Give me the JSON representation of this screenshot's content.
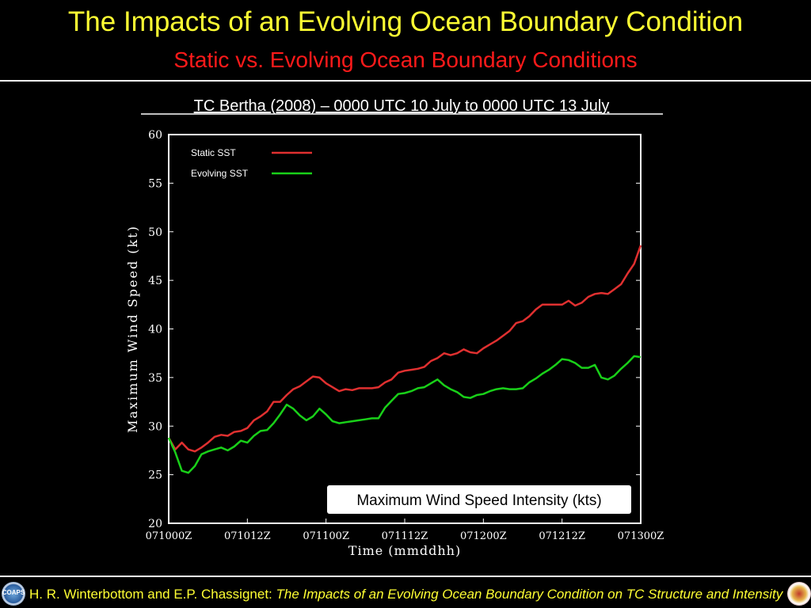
{
  "header": {
    "title": "The Impacts of an Evolving Ocean Boundary Condition",
    "subtitle": "Static vs. Evolving Ocean Boundary Conditions"
  },
  "footer": {
    "authors": "H. R. Winterbottom and E.P. Chassignet: ",
    "paper_title": "The Impacts of an Evolving Ocean Boundary Condition on TC Structure and Intensity",
    "left_logo_text": "COAPS"
  },
  "colors": {
    "static": "#e03030",
    "evolving": "#19d019",
    "title": "#ffff33",
    "subtitle": "#ff1a1a"
  },
  "chart_data": {
    "type": "line",
    "title": "TC Bertha (2008) – 0000 UTC 10 July to 0000 UTC 13 July",
    "xlabel": "Time (mmddhh)",
    "ylabel": "Maximum Wind Speed (kt)",
    "annotation": "Maximum Wind Speed Intensity (kts)",
    "xlim": [
      0,
      72
    ],
    "ylim": [
      20,
      60
    ],
    "yticks": [
      20,
      25,
      30,
      35,
      40,
      45,
      50,
      55,
      60
    ],
    "xticks": [
      {
        "x": 0,
        "label": "071000Z"
      },
      {
        "x": 12,
        "label": "071012Z"
      },
      {
        "x": 24,
        "label": "071100Z"
      },
      {
        "x": 36,
        "label": "071112Z"
      },
      {
        "x": 48,
        "label": "071200Z"
      },
      {
        "x": 60,
        "label": "071212Z"
      },
      {
        "x": 72,
        "label": "071300Z"
      }
    ],
    "legend_position": "top-left",
    "x": [
      0,
      1,
      2,
      3,
      4,
      5,
      6,
      7,
      8,
      9,
      10,
      11,
      12,
      13,
      14,
      15,
      16,
      17,
      18,
      19,
      20,
      21,
      22,
      23,
      24,
      25,
      26,
      27,
      28,
      29,
      30,
      31,
      32,
      33,
      34,
      35,
      36,
      37,
      38,
      39,
      40,
      41,
      42,
      43,
      44,
      45,
      46,
      47,
      48,
      49,
      50,
      51,
      52,
      53,
      54,
      55,
      56,
      57,
      58,
      59,
      60,
      61,
      62,
      63,
      64,
      65,
      66,
      67,
      68,
      69,
      70,
      71,
      72
    ],
    "series": [
      {
        "name": "Static SST",
        "values": [
          28.8,
          27.6,
          28.3,
          27.6,
          27.4,
          27.8,
          28.3,
          28.9,
          29.1,
          29.0,
          29.4,
          29.5,
          29.8,
          30.6,
          31.0,
          31.5,
          32.5,
          32.5,
          33.2,
          33.8,
          34.1,
          34.6,
          35.1,
          35.0,
          34.4,
          34.0,
          33.6,
          33.8,
          33.7,
          33.9,
          33.9,
          33.9,
          34.0,
          34.5,
          34.8,
          35.5,
          35.7,
          35.8,
          35.9,
          36.1,
          36.7,
          37.0,
          37.5,
          37.3,
          37.5,
          37.9,
          37.6,
          37.5,
          38.0,
          38.4,
          38.8,
          39.3,
          39.8,
          40.6,
          40.8,
          41.3,
          42.0,
          42.5,
          42.5,
          42.5,
          42.5,
          42.9,
          42.4,
          42.7,
          43.3,
          43.6,
          43.7,
          43.6,
          44.1,
          44.6,
          45.7,
          46.7,
          48.6
        ]
      },
      {
        "name": "Evolving SST",
        "values": [
          28.8,
          27.3,
          25.4,
          25.2,
          25.9,
          27.1,
          27.4,
          27.6,
          27.8,
          27.5,
          27.9,
          28.5,
          28.3,
          29.0,
          29.5,
          29.6,
          30.3,
          31.2,
          32.2,
          31.8,
          31.1,
          30.6,
          31.0,
          31.8,
          31.2,
          30.5,
          30.3,
          30.4,
          30.5,
          30.6,
          30.7,
          30.8,
          30.8,
          31.9,
          32.6,
          33.3,
          33.4,
          33.6,
          33.9,
          34.0,
          34.4,
          34.8,
          34.2,
          33.8,
          33.5,
          33.0,
          32.9,
          33.2,
          33.3,
          33.6,
          33.8,
          33.9,
          33.8,
          33.8,
          33.9,
          34.5,
          34.9,
          35.4,
          35.8,
          36.3,
          36.9,
          36.8,
          36.5,
          36.0,
          36.0,
          36.3,
          35.0,
          34.8,
          35.2,
          35.9,
          36.5,
          37.2,
          37.1
        ]
      }
    ]
  }
}
